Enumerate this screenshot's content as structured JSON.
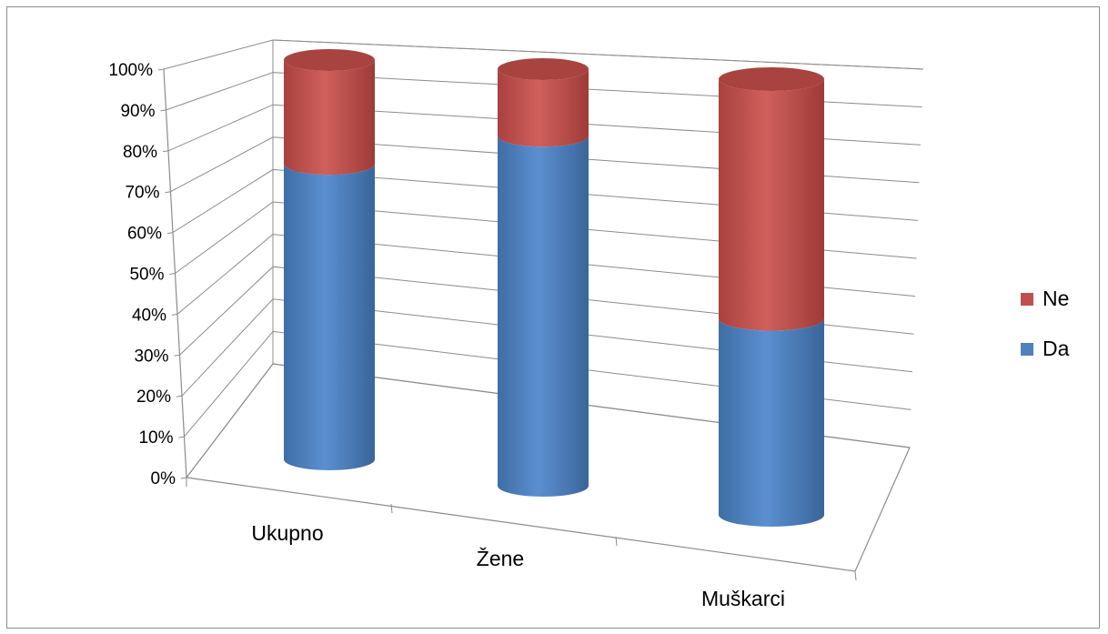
{
  "chart_data": {
    "type": "bar",
    "subtype": "stacked-100-percent-3d-cylinder",
    "categories": [
      "Ukupno",
      "Žene",
      "Muškarci"
    ],
    "series": [
      {
        "name": "Da",
        "values": [
          74,
          84,
          45
        ],
        "color": "#4f81bd"
      },
      {
        "name": "Ne",
        "values": [
          26,
          16,
          55
        ],
        "color": "#c0504d"
      }
    ],
    "y_ticks": [
      "0%",
      "10%",
      "20%",
      "30%",
      "40%",
      "50%",
      "60%",
      "70%",
      "80%",
      "90%",
      "100%"
    ],
    "ylim": [
      0,
      100
    ],
    "grid": true,
    "legend_position": "right"
  }
}
